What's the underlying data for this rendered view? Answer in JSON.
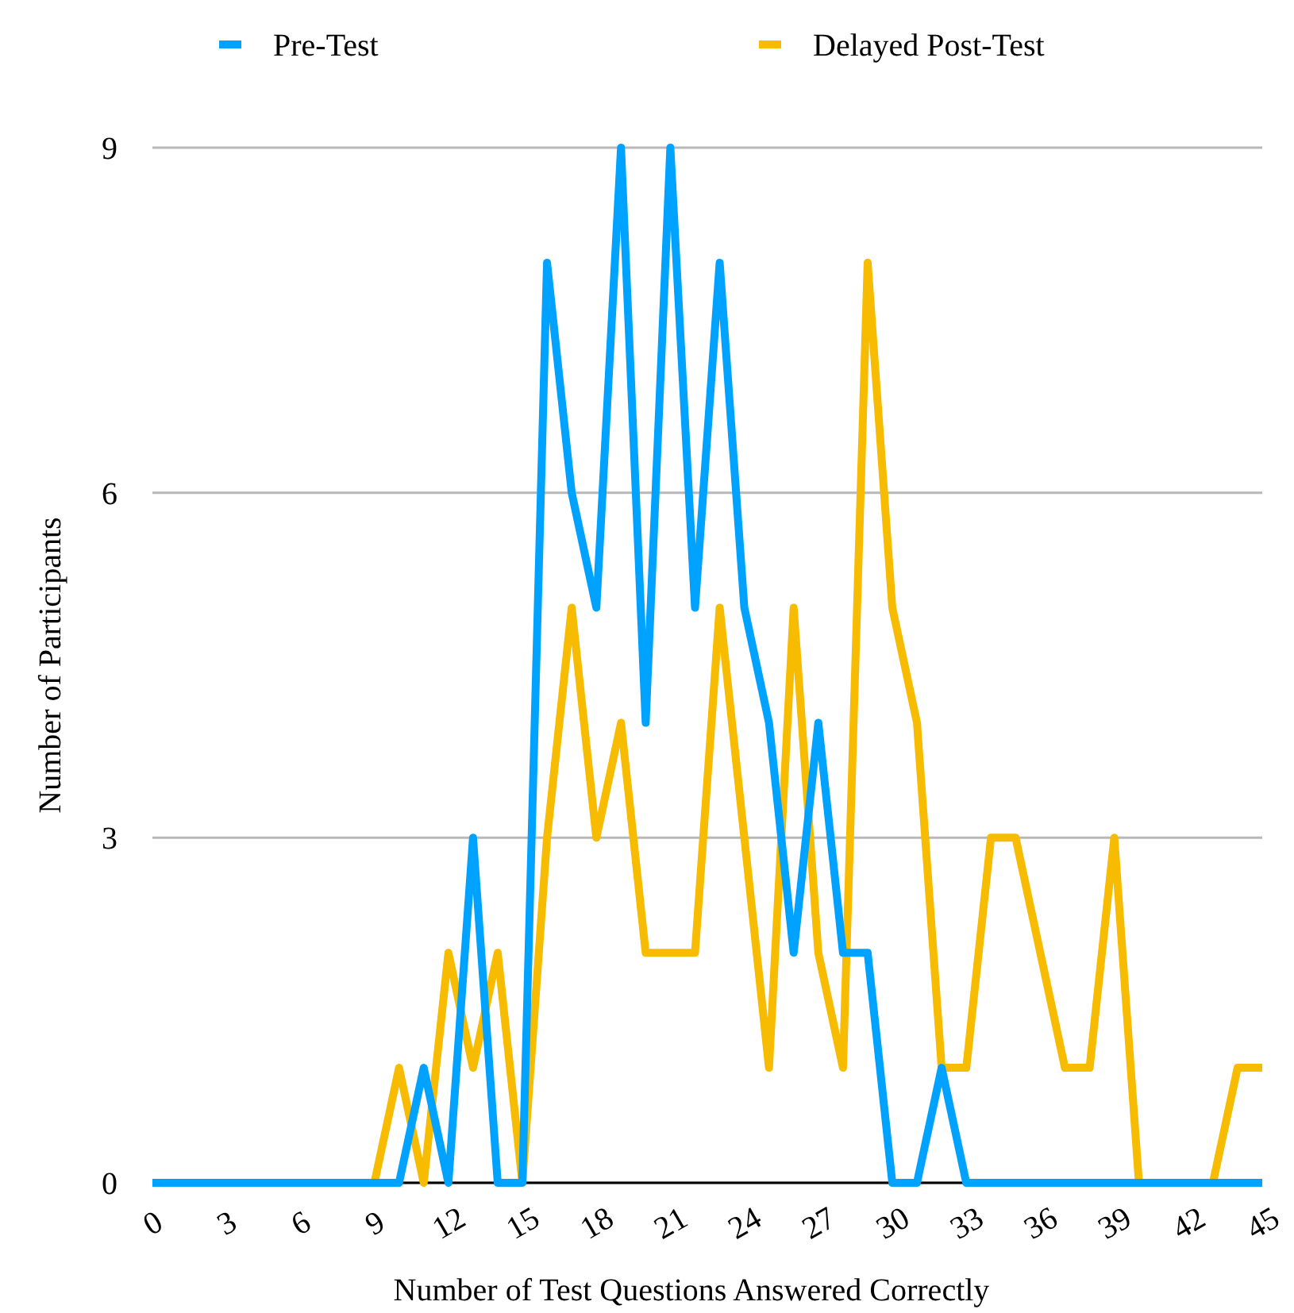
{
  "chart_data": {
    "type": "line",
    "xlabel": "Number of Test Questions Answered Correctly",
    "ylabel": "Number of Participants",
    "x": [
      0,
      1,
      2,
      3,
      4,
      5,
      6,
      7,
      8,
      9,
      10,
      11,
      12,
      13,
      14,
      15,
      16,
      17,
      18,
      19,
      20,
      21,
      22,
      23,
      24,
      25,
      26,
      27,
      28,
      29,
      30,
      31,
      32,
      33,
      34,
      35,
      36,
      37,
      38,
      39,
      40,
      41,
      42,
      43,
      44,
      45
    ],
    "series": [
      {
        "name": "Pre-Test",
        "color": "#00a2ff",
        "values": [
          0,
          0,
          0,
          0,
          0,
          0,
          0,
          0,
          0,
          0,
          0,
          1,
          0,
          3,
          0,
          0,
          8,
          6,
          5,
          9,
          4,
          9,
          5,
          8,
          5,
          4,
          2,
          4,
          2,
          2,
          0,
          0,
          1,
          0,
          0,
          0,
          0,
          0,
          0,
          0,
          0,
          0,
          0,
          0,
          0,
          0
        ]
      },
      {
        "name": "Delayed Post-Test",
        "color": "#f7bb00",
        "values": [
          null,
          null,
          null,
          null,
          null,
          null,
          null,
          null,
          null,
          0,
          1,
          0,
          2,
          1,
          2,
          0,
          3,
          5,
          3,
          4,
          2,
          2,
          2,
          5,
          3,
          1,
          5,
          2,
          1,
          8,
          5,
          4,
          1,
          1,
          3,
          3,
          2,
          1,
          1,
          3,
          0,
          null,
          null,
          0,
          1,
          1
        ]
      }
    ],
    "xlim": [
      0,
      45
    ],
    "xticks": [
      0,
      3,
      6,
      9,
      12,
      15,
      18,
      21,
      24,
      27,
      30,
      33,
      36,
      39,
      42,
      45
    ],
    "ylim": [
      0,
      9
    ],
    "yticks": [
      0,
      3,
      6,
      9
    ],
    "grid": "y",
    "legend": "top",
    "marker": "none",
    "line_style": "solid"
  }
}
